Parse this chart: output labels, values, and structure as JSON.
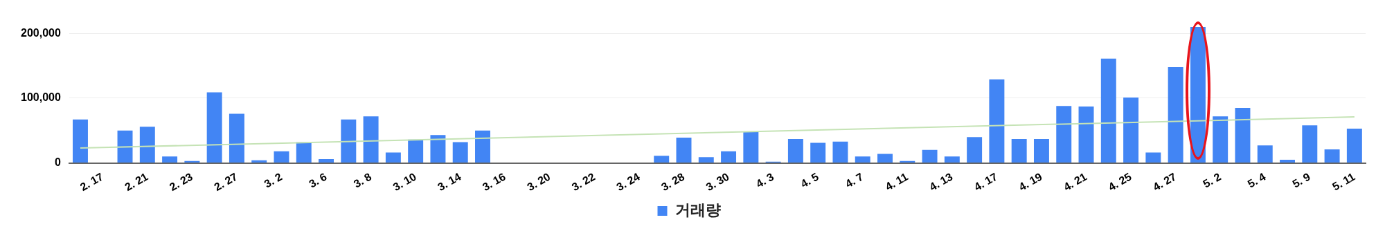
{
  "chart_data": {
    "type": "bar",
    "categories": [
      null,
      "2. 17",
      null,
      "2. 21",
      null,
      "2. 23",
      null,
      "2. 27",
      null,
      "3. 2",
      null,
      "3. 6",
      null,
      "3. 8",
      null,
      "3. 10",
      null,
      "3. 14",
      null,
      "3. 16",
      null,
      "3. 20",
      null,
      "3. 22",
      null,
      "3. 24",
      null,
      "3. 28",
      null,
      "3. 30",
      null,
      "4. 3",
      null,
      "4. 5",
      null,
      "4. 7",
      null,
      "4. 11",
      null,
      "4. 13",
      null,
      "4. 17",
      null,
      "4. 19",
      null,
      "4. 21",
      null,
      "4. 25",
      null,
      "4. 27",
      null,
      "5. 2",
      null,
      "5. 4",
      null,
      "5. 9",
      null,
      "5. 11"
    ],
    "series": [
      {
        "name": "거래량",
        "color": "#4285f4",
        "values": [
          67000,
          0,
          50000,
          56000,
          10000,
          3000,
          109000,
          76000,
          4000,
          18000,
          32000,
          6000,
          67000,
          72000,
          16000,
          36000,
          43000,
          32000,
          50000,
          0,
          0,
          0,
          0,
          0,
          0,
          0,
          11000,
          39000,
          9000,
          18000,
          48000,
          2000,
          37000,
          31000,
          33000,
          10000,
          14000,
          3000,
          20000,
          10000,
          40000,
          129000,
          37000,
          37000,
          88000,
          87000,
          161000,
          101000,
          16000,
          148000,
          210000,
          72000,
          85000,
          27000,
          5000,
          58000,
          21000,
          53000
        ]
      },
      {
        "type": "line",
        "color": "#c5e3b5",
        "x": [
          null,
          "5. 11"
        ],
        "values": [
          23000,
          71000
        ]
      }
    ],
    "ylim": [
      0,
      220000
    ],
    "yticks": [
      {
        "value": 0,
        "label": "0"
      },
      {
        "value": 100000,
        "label": "100,000"
      },
      {
        "value": 200000,
        "label": "200,000"
      }
    ],
    "grid": "y",
    "legend": "bottom"
  }
}
